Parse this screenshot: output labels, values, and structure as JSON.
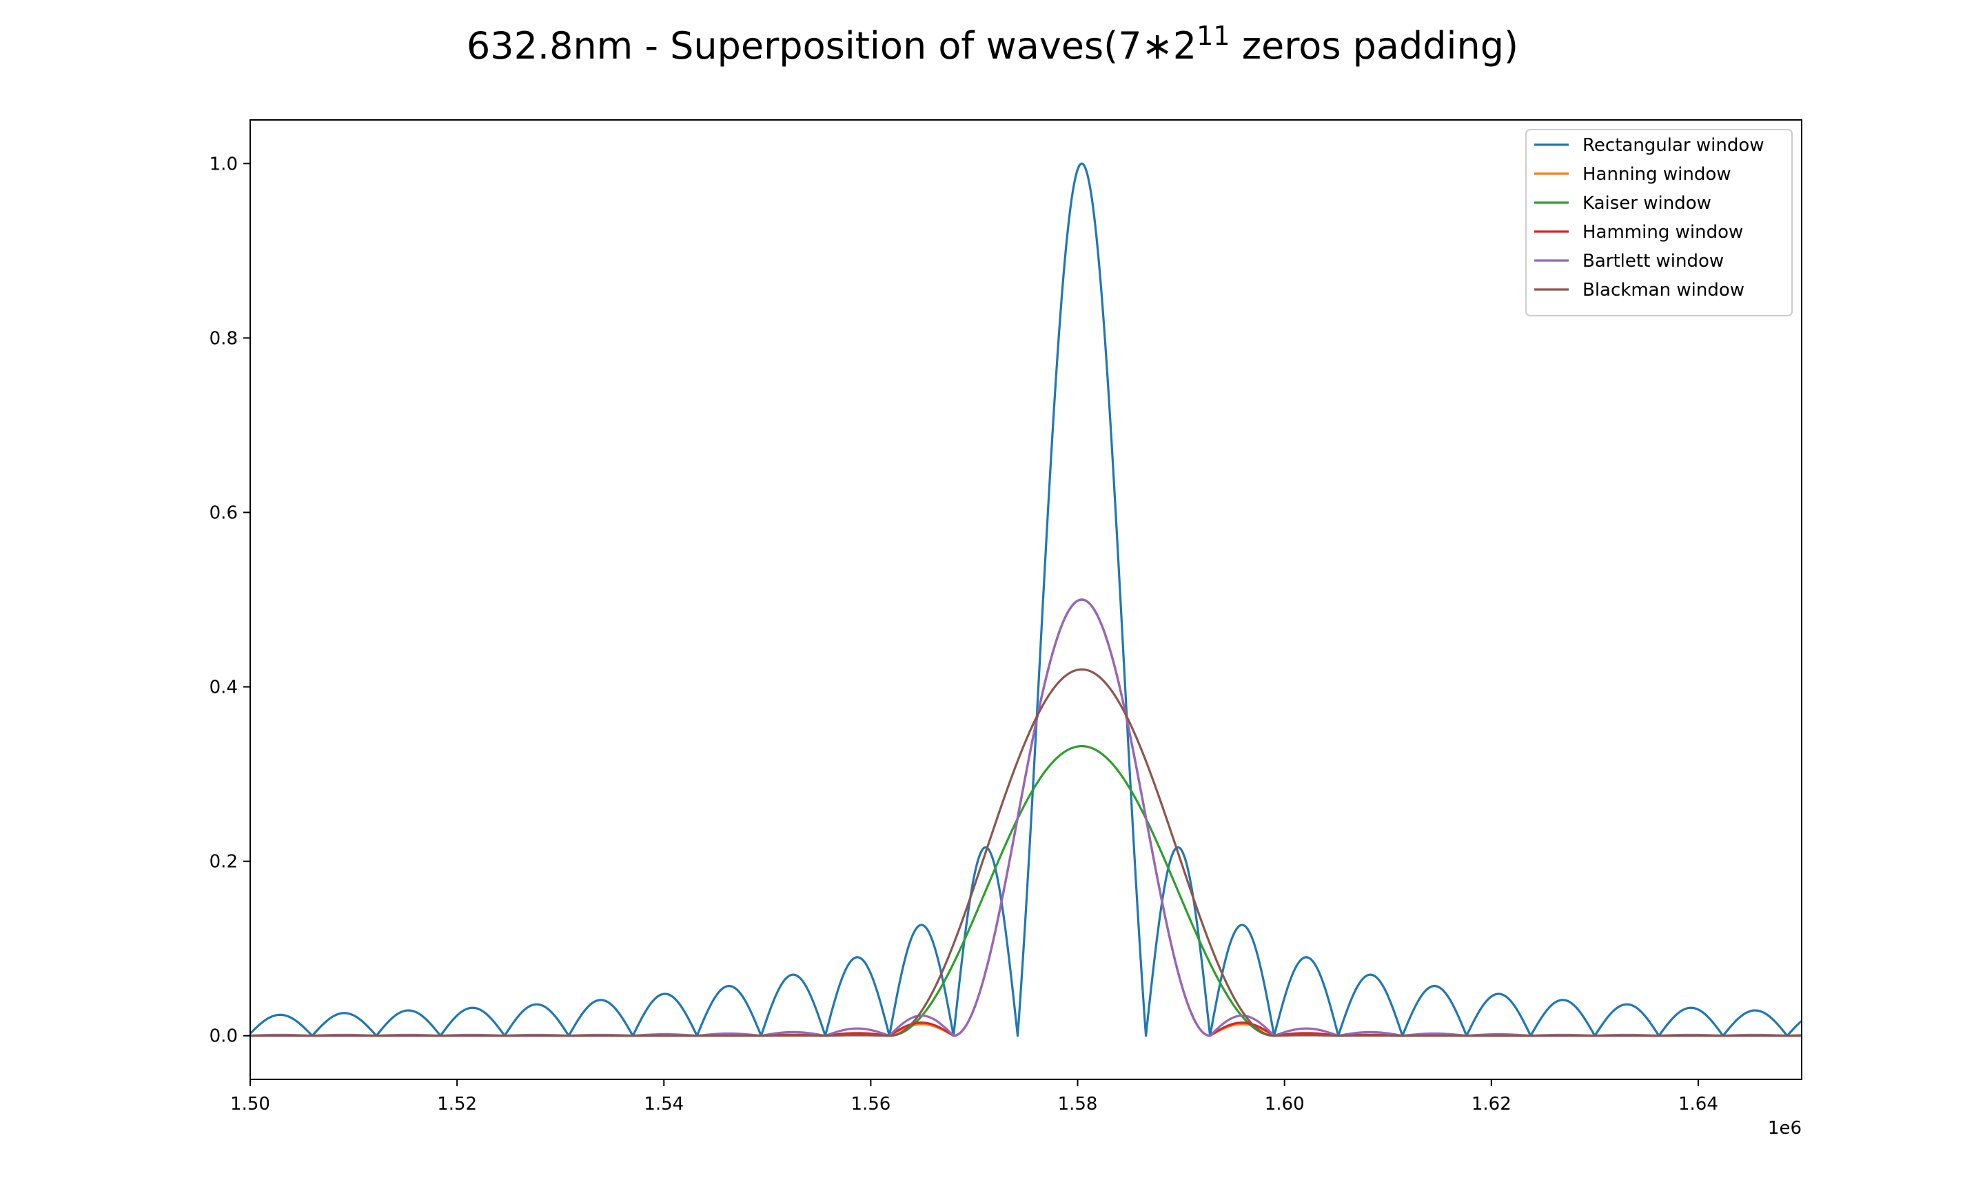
{
  "chart_data": {
    "type": "line",
    "title": {
      "main": "632.8nm - Superposition of waves(7∗2",
      "superscript": "11",
      "tail": " zeros padding)"
    },
    "xlabel": "",
    "ylabel": "",
    "x_offset_label": "1e6",
    "xlim": [
      1.5,
      1.65
    ],
    "ylim": [
      -0.05,
      1.05
    ],
    "x_ticks": [
      1.5,
      1.52,
      1.54,
      1.56,
      1.58,
      1.6,
      1.62,
      1.64
    ],
    "x_tick_labels": [
      "1.50",
      "1.52",
      "1.54",
      "1.56",
      "1.58",
      "1.60",
      "1.62",
      "1.64"
    ],
    "y_ticks": [
      0.0,
      0.2,
      0.4,
      0.6,
      0.8,
      1.0
    ],
    "y_tick_labels": [
      "0.0",
      "0.2",
      "0.4",
      "0.6",
      "0.8",
      "1.0"
    ],
    "grid": false,
    "legend_position": "top-right",
    "peak_center": 1.5804,
    "null_spacing": 0.0062,
    "series": [
      {
        "name": "Rectangular window",
        "color": "#1f77b4",
        "peak": 1.0,
        "mainlobe_halfwidth": 0.0062,
        "sidelobe_peaks": [
          0.216,
          0.127,
          0.09,
          0.07,
          0.057,
          0.048,
          0.041,
          0.036,
          0.032,
          0.029,
          0.026,
          0.024
        ]
      },
      {
        "name": "Hanning window",
        "color": "#ff7f0e",
        "peak": 0.5,
        "mainlobe_halfwidth": 0.0124,
        "sidelobe_peaks": [
          0.0133,
          0.0026,
          0.0009,
          0.0004,
          0.0002
        ]
      },
      {
        "name": "Kaiser window",
        "color": "#2ca02c",
        "peak": 0.332,
        "mainlobe_halfwidth": 0.0186,
        "sidelobe_peaks": [
          0.0008,
          0.0004,
          0.0002
        ]
      },
      {
        "name": "Hamming window",
        "color": "#d62728",
        "peak": 0.5,
        "mainlobe_halfwidth": 0.0124,
        "sidelobe_peaks": [
          0.015,
          0.003,
          0.0012,
          0.0008,
          0.0006
        ]
      },
      {
        "name": "Bartlett window",
        "color": "#9467bd",
        "peak": 0.5,
        "mainlobe_halfwidth": 0.0124,
        "sidelobe_peaks": [
          0.023,
          0.0083,
          0.0042,
          0.0025,
          0.0017
        ]
      },
      {
        "name": "Blackman window",
        "color": "#8c564b",
        "peak": 0.42,
        "mainlobe_halfwidth": 0.0186,
        "sidelobe_peaks": [
          0.0006,
          0.0002,
          0.0001
        ]
      }
    ]
  }
}
